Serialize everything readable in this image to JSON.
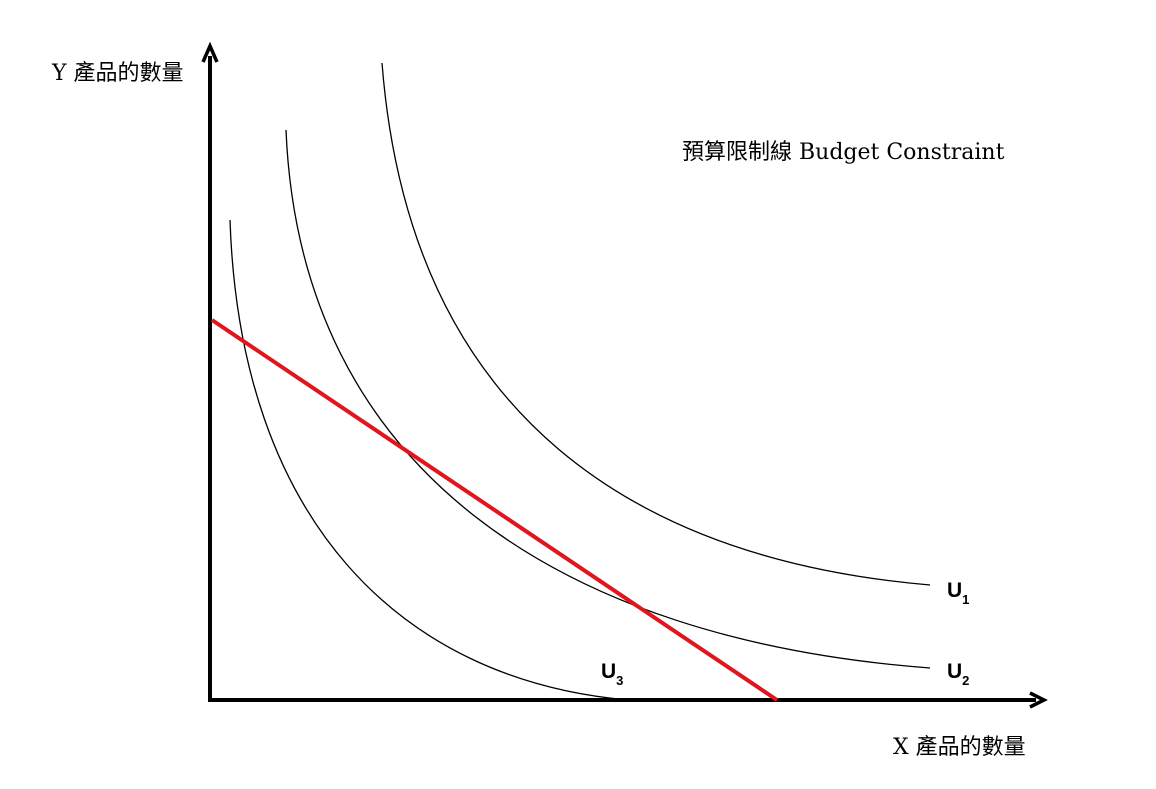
{
  "axes": {
    "y_label": "Y 產品的數量",
    "x_label": "X 產品的數量"
  },
  "annotation": "預算限制線 Budget Constraint",
  "curves": [
    {
      "letter": "U",
      "subscript": "1"
    },
    {
      "letter": "U",
      "subscript": "2"
    },
    {
      "letter": "U",
      "subscript": "3"
    }
  ]
}
